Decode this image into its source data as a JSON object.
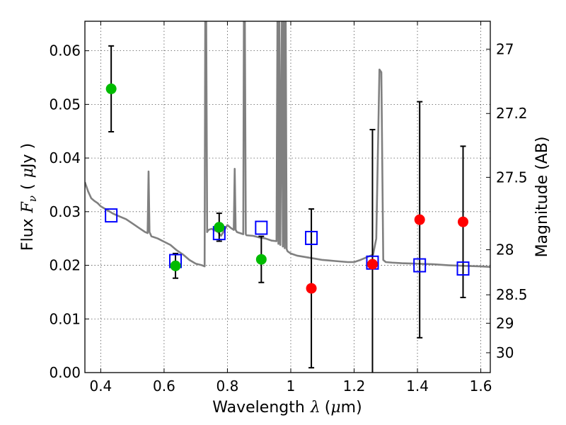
{
  "chart_data": {
    "type": "scatter",
    "title": "",
    "xlabel": {
      "prefix": "Wavelength",
      "symbol": "λ",
      "unit_open": "(",
      "unit_mu": "μ",
      "unit_rest": "m)"
    },
    "ylabel": {
      "prefix": "Flux",
      "symbol": "F",
      "symbol_sub": "ν",
      "unit_open": "(",
      "unit_mu": "μ",
      "unit_rest": "Jy )"
    },
    "ylabel_right": "Magnitude (AB)",
    "xlim": [
      0.35,
      1.63
    ],
    "ylim": [
      0.0,
      0.0655
    ],
    "grid": true,
    "x_ticks": [
      {
        "value": 0.4,
        "label": "0.4"
      },
      {
        "value": 0.6,
        "label": "0.6"
      },
      {
        "value": 0.8,
        "label": "0.8"
      },
      {
        "value": 1.0,
        "label": "1"
      },
      {
        "value": 1.2,
        "label": "1.2"
      },
      {
        "value": 1.4,
        "label": "1.4"
      },
      {
        "value": 1.6,
        "label": "1.6"
      }
    ],
    "y_ticks": [
      {
        "value": 0.0,
        "label": "0.00"
      },
      {
        "value": 0.01,
        "label": "0.01"
      },
      {
        "value": 0.02,
        "label": "0.02"
      },
      {
        "value": 0.03,
        "label": "0.03"
      },
      {
        "value": 0.04,
        "label": "0.04"
      },
      {
        "value": 0.05,
        "label": "0.05"
      },
      {
        "value": 0.06,
        "label": "0.06"
      }
    ],
    "right_ticks": [
      {
        "flux": 0.0603,
        "label": "27"
      },
      {
        "flux": 0.0483,
        "label": "27.2"
      },
      {
        "flux": 0.0364,
        "label": "27.5"
      },
      {
        "flux": 0.0229,
        "label": "28"
      },
      {
        "flux": 0.0145,
        "label": "28.5"
      },
      {
        "flux": 0.0092,
        "label": "29"
      },
      {
        "flux": 0.0037,
        "label": "30"
      }
    ],
    "colors": {
      "model": "#808080",
      "green": "#00bb00",
      "red": "#ff0000",
      "blue_box": "#0000ff",
      "errorbar": "#000000",
      "grid": "#555555"
    },
    "model_spectrum": {
      "x": [
        0.35,
        0.36,
        0.37,
        0.38,
        0.39,
        0.4,
        0.42,
        0.44,
        0.46,
        0.48,
        0.5,
        0.52,
        0.54,
        0.548,
        0.551,
        0.554,
        0.56,
        0.58,
        0.6,
        0.62,
        0.64,
        0.66,
        0.68,
        0.7,
        0.72,
        0.728,
        0.73,
        0.733,
        0.736,
        0.74,
        0.75,
        0.76,
        0.77,
        0.78,
        0.79,
        0.8,
        0.81,
        0.82,
        0.823,
        0.826,
        0.83,
        0.84,
        0.85,
        0.852,
        0.855,
        0.858,
        0.86,
        0.88,
        0.9,
        0.92,
        0.94,
        0.955,
        0.958,
        0.961,
        0.964,
        0.967,
        0.972,
        0.975,
        0.978,
        0.981,
        0.984,
        0.987,
        0.99,
        1.0,
        1.02,
        1.04,
        1.06,
        1.08,
        1.1,
        1.12,
        1.14,
        1.16,
        1.18,
        1.2,
        1.22,
        1.24,
        1.26,
        1.27,
        1.28,
        1.286,
        1.292,
        1.3,
        1.32,
        1.35,
        1.4,
        1.45,
        1.5,
        1.55,
        1.6,
        1.63
      ],
      "y": [
        0.0355,
        0.0338,
        0.0325,
        0.032,
        0.0316,
        0.031,
        0.0303,
        0.0296,
        0.0291,
        0.0286,
        0.0278,
        0.027,
        0.0262,
        0.026,
        0.0375,
        0.0262,
        0.0254,
        0.025,
        0.0244,
        0.0238,
        0.0228,
        0.022,
        0.021,
        0.0203,
        0.02,
        0.0198,
        0.066,
        0.066,
        0.0262,
        0.0266,
        0.0268,
        0.0265,
        0.0262,
        0.0255,
        0.0265,
        0.0275,
        0.027,
        0.0266,
        0.038,
        0.0266,
        0.0262,
        0.026,
        0.0258,
        0.066,
        0.066,
        0.0258,
        0.0256,
        0.0255,
        0.0252,
        0.025,
        0.0246,
        0.0245,
        0.066,
        0.024,
        0.066,
        0.0238,
        0.066,
        0.0235,
        0.066,
        0.0232,
        0.066,
        0.023,
        0.0226,
        0.0222,
        0.0218,
        0.0216,
        0.0214,
        0.0212,
        0.021,
        0.0209,
        0.0208,
        0.0207,
        0.0206,
        0.0206,
        0.021,
        0.0215,
        0.022,
        0.025,
        0.0565,
        0.056,
        0.021,
        0.0206,
        0.0205,
        0.0204,
        0.0203,
        0.0202,
        0.02,
        0.0199,
        0.0198,
        0.0197
      ]
    },
    "model_points": [
      {
        "x": 0.433,
        "y": 0.0293
      },
      {
        "x": 0.636,
        "y": 0.0208
      },
      {
        "x": 0.774,
        "y": 0.026
      },
      {
        "x": 0.907,
        "y": 0.027
      },
      {
        "x": 1.065,
        "y": 0.0251
      },
      {
        "x": 1.258,
        "y": 0.0205
      },
      {
        "x": 1.407,
        "y": 0.02
      },
      {
        "x": 1.544,
        "y": 0.0194
      }
    ],
    "detections": [
      {
        "x": 0.433,
        "y": 0.0529,
        "err": 0.008
      },
      {
        "x": 0.636,
        "y": 0.0199,
        "err": 0.0023
      },
      {
        "x": 0.774,
        "y": 0.0271,
        "err": 0.0026
      },
      {
        "x": 0.907,
        "y": 0.0211,
        "err": 0.0043
      }
    ],
    "nondetections": [
      {
        "x": 1.065,
        "y": 0.0157,
        "err": 0.0148
      },
      {
        "x": 1.258,
        "y": 0.0202,
        "err": 0.0251
      },
      {
        "x": 1.407,
        "y": 0.0285,
        "err": 0.022
      },
      {
        "x": 1.544,
        "y": 0.0281,
        "err": 0.0141
      }
    ]
  }
}
